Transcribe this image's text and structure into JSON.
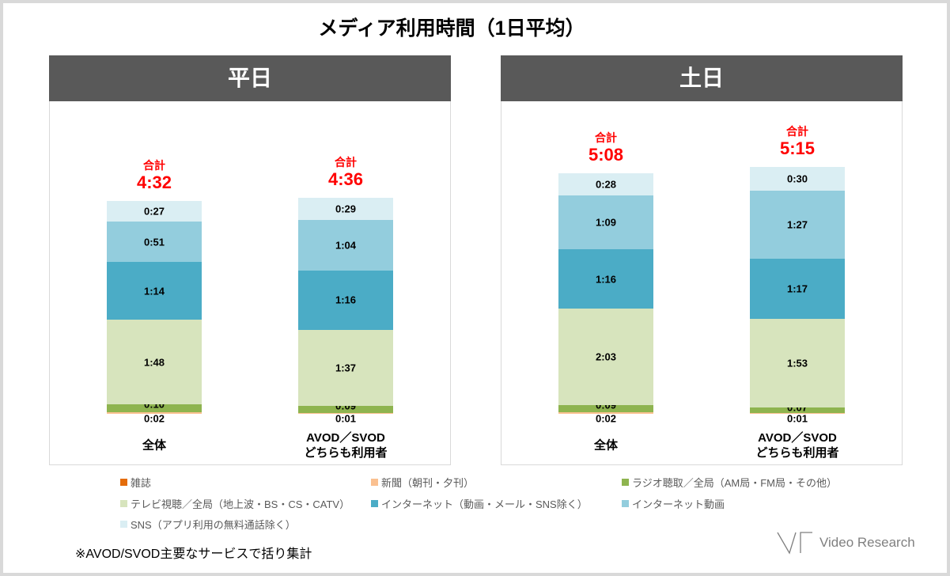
{
  "title": "メディア利用時間（1日平均）",
  "total_caption": "合計",
  "chart_data": {
    "type": "bar",
    "stacked": true,
    "categories": [
      "全体",
      "AVOD／SVOD\nどちらも利用者"
    ],
    "panels": [
      {
        "title": "平日",
        "totals": [
          "4:32",
          "4:36"
        ]
      },
      {
        "title": "土日",
        "totals": [
          "5:08",
          "5:15"
        ]
      }
    ],
    "series": [
      {
        "name": "雑誌",
        "color": "#E46C0A",
        "values": [
          [
            null,
            null
          ],
          [
            null,
            null
          ]
        ]
      },
      {
        "name": "新聞（朝刊・夕刊）",
        "color": "#FAC090",
        "values": [
          [
            "0:02",
            "0:01"
          ],
          [
            "0:02",
            "0:01"
          ]
        ]
      },
      {
        "name": "ラジオ聴取／全局（AM局・FM局・その他）",
        "color": "#8EB44F",
        "values": [
          [
            "0:10",
            "0:09"
          ],
          [
            "0:09",
            "0:07"
          ]
        ]
      },
      {
        "name": "テレビ視聴／全局（地上波・BS・CS・CATV）",
        "color": "#D7E4BD",
        "values": [
          [
            "1:48",
            "1:37"
          ],
          [
            "2:03",
            "1:53"
          ]
        ]
      },
      {
        "name": "インターネット（動画・メール・SNS除く）",
        "color": "#4BACC6",
        "values": [
          [
            "1:14",
            "1:16"
          ],
          [
            "1:16",
            "1:17"
          ]
        ]
      },
      {
        "name": "インターネット動画",
        "color": "#93CDDD",
        "values": [
          [
            "0:51",
            "1:04"
          ],
          [
            "1:09",
            "1:27"
          ]
        ]
      },
      {
        "name": "SNS（アプリ利用の無料通話除く）",
        "color": "#DAEEF3",
        "values": [
          [
            "0:27",
            "0:29"
          ],
          [
            "0:28",
            "0:30"
          ]
        ]
      }
    ],
    "legend_position": "bottom",
    "grid": false
  },
  "footnote": "※AVOD/SVOD主要なサービスで括り集計",
  "logo": {
    "text": "Video Research"
  }
}
